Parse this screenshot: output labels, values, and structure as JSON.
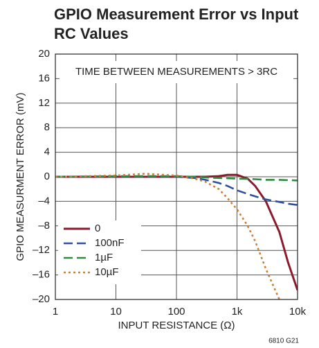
{
  "chart_data": {
    "type": "line",
    "title": [
      "GPIO Measurement Error vs Input",
      "RC Values"
    ],
    "xlabel": "INPUT RESISTANCE (Ω)",
    "ylabel": "GPIO MEASURMENT ERROR (mV)",
    "annotation": "TIME BETWEEN MEASUREMENTS > 3RC",
    "footnote": "6810 G21",
    "xscale": "log",
    "xlim": [
      1,
      10000
    ],
    "xticks": [
      1,
      10,
      100,
      {
        "value": 1000,
        "label": "1k"
      },
      {
        "value": 10000,
        "label": "10k"
      }
    ],
    "ylim": [
      -20,
      20
    ],
    "yticks": [
      {
        "value": -20,
        "label": "–20"
      },
      {
        "value": -16,
        "label": "–16"
      },
      {
        "value": -12,
        "label": "–12"
      },
      {
        "value": -8,
        "label": "–8"
      },
      {
        "value": -4,
        "label": "–4"
      },
      0,
      4,
      8,
      12,
      16,
      20
    ],
    "grid": true,
    "legend": "lower left",
    "x": [
      1,
      10,
      30,
      100,
      200,
      300,
      500,
      700,
      1000,
      1500,
      2000,
      3000,
      5000,
      7000,
      10000
    ],
    "series": [
      {
        "name": "0",
        "color": "#8c1a2e",
        "style": "solid",
        "values": [
          0,
          0,
          0,
          0,
          0,
          0,
          0.1,
          0.3,
          0.3,
          -0.3,
          -1.5,
          -4,
          -9,
          -14,
          -18.5
        ]
      },
      {
        "name": "100nF",
        "color": "#2e4f9e",
        "style": "dashed",
        "values": [
          0,
          0,
          0,
          0,
          -0.2,
          -0.5,
          -1,
          -1.5,
          -2.2,
          -2.8,
          -3.2,
          -3.7,
          -4.1,
          -4.4,
          -4.6
        ]
      },
      {
        "name": "1µF",
        "color": "#2e8b3e",
        "style": "dashed",
        "values": [
          0,
          0.1,
          0.1,
          0.1,
          0,
          -0.1,
          -0.2,
          -0.25,
          -0.3,
          -0.35,
          -0.4,
          -0.5,
          -0.5,
          -0.55,
          -0.6
        ]
      },
      {
        "name": "10µF",
        "color": "#c8813a",
        "style": "dotted",
        "values": [
          0,
          0.2,
          0.5,
          0.2,
          -0.3,
          -0.8,
          -2,
          -3.5,
          -5.3,
          -8,
          -10.5,
          -15,
          -20,
          null,
          null
        ]
      }
    ]
  }
}
